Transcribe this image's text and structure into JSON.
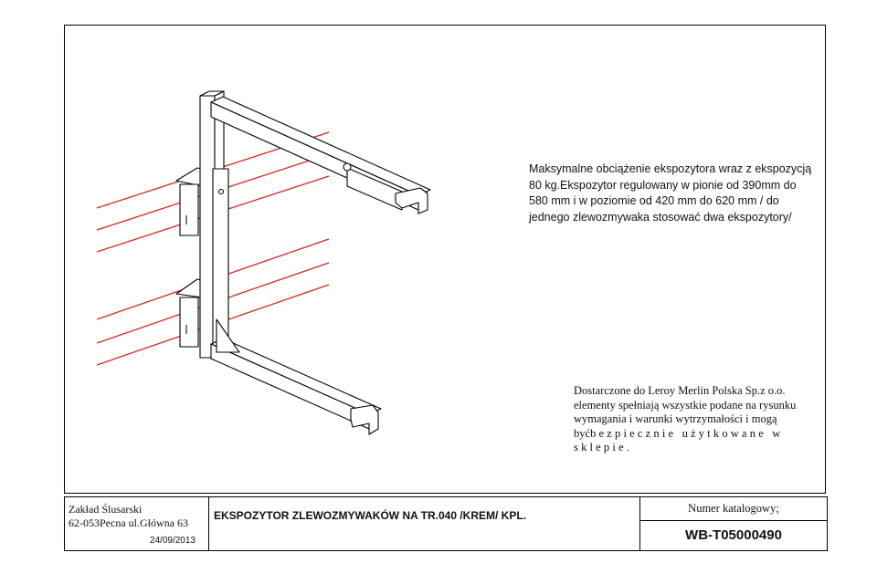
{
  "drawing": {
    "load_note": "Maksymalne obciążenie ekspozytora wraz z ekspozycją 80 kg.Ekspozytor regulowany w pionie od 390mm do 580 mm i w poziomie od 420 mm do 620 mm / do jednego zlewozmywaka stosować dwa ekspozytory/",
    "supplier_note_main": "Dostarczone do Leroy Merlin Polska Sp.z o.o. elementy spełniają wszystkie podane na rysunku wymagania i warunki wytrzymałości i mogą być",
    "supplier_note_spaced": "bezpiecznie użytkowane w sklepie.",
    "colors": {
      "outline": "#000000",
      "guide_lines": "#d42a1f"
    }
  },
  "title_block": {
    "company_name": "Zakład Ślusarski",
    "company_address": "62-053Pecna ul.Główna 63",
    "date": "24/09/2013",
    "title": "EKSPOZYTOR ZLEWOZMYWAKÓW NA TR.040 /KREM/ KPL.",
    "catalog_label": "Numer katalogowy;",
    "catalog_number": "WB-T05000490"
  }
}
